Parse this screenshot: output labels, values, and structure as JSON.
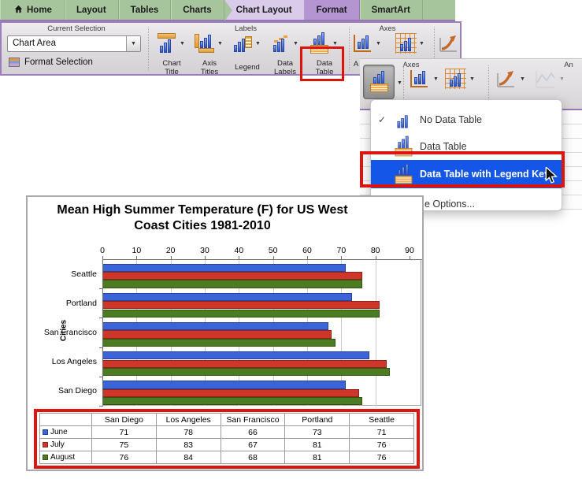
{
  "tab_bar": {
    "tabs": [
      {
        "label": "Home",
        "icon": "home-icon"
      },
      {
        "label": "Layout"
      },
      {
        "label": "Tables"
      },
      {
        "label": "Charts"
      },
      {
        "label": "Chart Layout",
        "state": "active"
      },
      {
        "label": "Format",
        "state": "highlighted"
      },
      {
        "label": "SmartArt"
      }
    ]
  },
  "ribbon": {
    "current_selection": {
      "group_label": "Current Selection",
      "selector_value": "Chart Area",
      "format_selection_label": "Format Selection"
    },
    "labels_group": {
      "group_label": "Labels",
      "buttons": [
        {
          "caption_lines": [
            "Chart",
            "Title"
          ],
          "icon": "chart-title-icon"
        },
        {
          "caption_lines": [
            "Axis",
            "Titles"
          ],
          "icon": "axis-titles-icon"
        },
        {
          "caption_lines": [
            "Legend",
            ""
          ],
          "icon": "legend-icon"
        },
        {
          "caption_lines": [
            "Data",
            "Labels"
          ],
          "icon": "data-labels-icon"
        },
        {
          "caption_lines": [
            "Data",
            "Table"
          ],
          "icon": "data-table-icon",
          "annotated_with_red_box": true
        }
      ]
    },
    "axes_group": {
      "group_label": "Axes",
      "visible_caption_fragment": "A"
    }
  },
  "popup_ribbon": {
    "axes_group_label": "Axes",
    "analysis_group_label_fragment": "An"
  },
  "dropdown_menu": {
    "items": [
      {
        "label": "No Data Table",
        "checked": true,
        "icon": "no-data-table-icon"
      },
      {
        "label": "Data Table",
        "icon": "data-table-icon"
      },
      {
        "label": "Data Table with Legend Key",
        "highlighted": true,
        "annotated_with_red_box": true,
        "icon": "data-table-legend-key-icon"
      },
      {
        "label": "e Options..."
      }
    ],
    "check_glyph": "✓"
  },
  "chart_data": {
    "type": "bar",
    "orientation": "horizontal",
    "title_lines": [
      "Mean High Summer Temperature (F) for US West",
      "Coast Cities 1981-2010"
    ],
    "ylabel": "Cities",
    "x_ticks": [
      0,
      10,
      20,
      30,
      40,
      50,
      60,
      70,
      80,
      90
    ],
    "xlim": [
      0,
      90
    ],
    "gridlines": true,
    "legend_position": "data-table",
    "rows_top_to_bottom": [
      "Seattle",
      "Portland",
      "San Francisco",
      "Los Angeles",
      "San Diego"
    ],
    "table_columns": [
      "San Diego",
      "Los Angeles",
      "San Francisco",
      "Portland",
      "Seattle"
    ],
    "series": [
      {
        "name": "June",
        "color": "#3a64d8",
        "border_color": "#24439b",
        "values_by_table_column": [
          71,
          78,
          66,
          73,
          71
        ]
      },
      {
        "name": "July",
        "color": "#cf3529",
        "border_color": "#8f241c",
        "values_by_table_column": [
          75,
          83,
          67,
          81,
          76
        ]
      },
      {
        "name": "August",
        "color": "#4d7b22",
        "border_color": "#31540f",
        "values_by_table_column": [
          76,
          84,
          68,
          81,
          76
        ]
      }
    ],
    "data_table_shown_with_legend_keys": true
  },
  "colors": {
    "annotation_red": "#df1408",
    "menu_highlight_blue": "#1457e8",
    "tab_bar_green": "#a6c59c",
    "active_tab_lavender": "#d9cbe9",
    "format_tab_purple": "#b495d2",
    "ribbon_border_purple": "#9678b4"
  }
}
